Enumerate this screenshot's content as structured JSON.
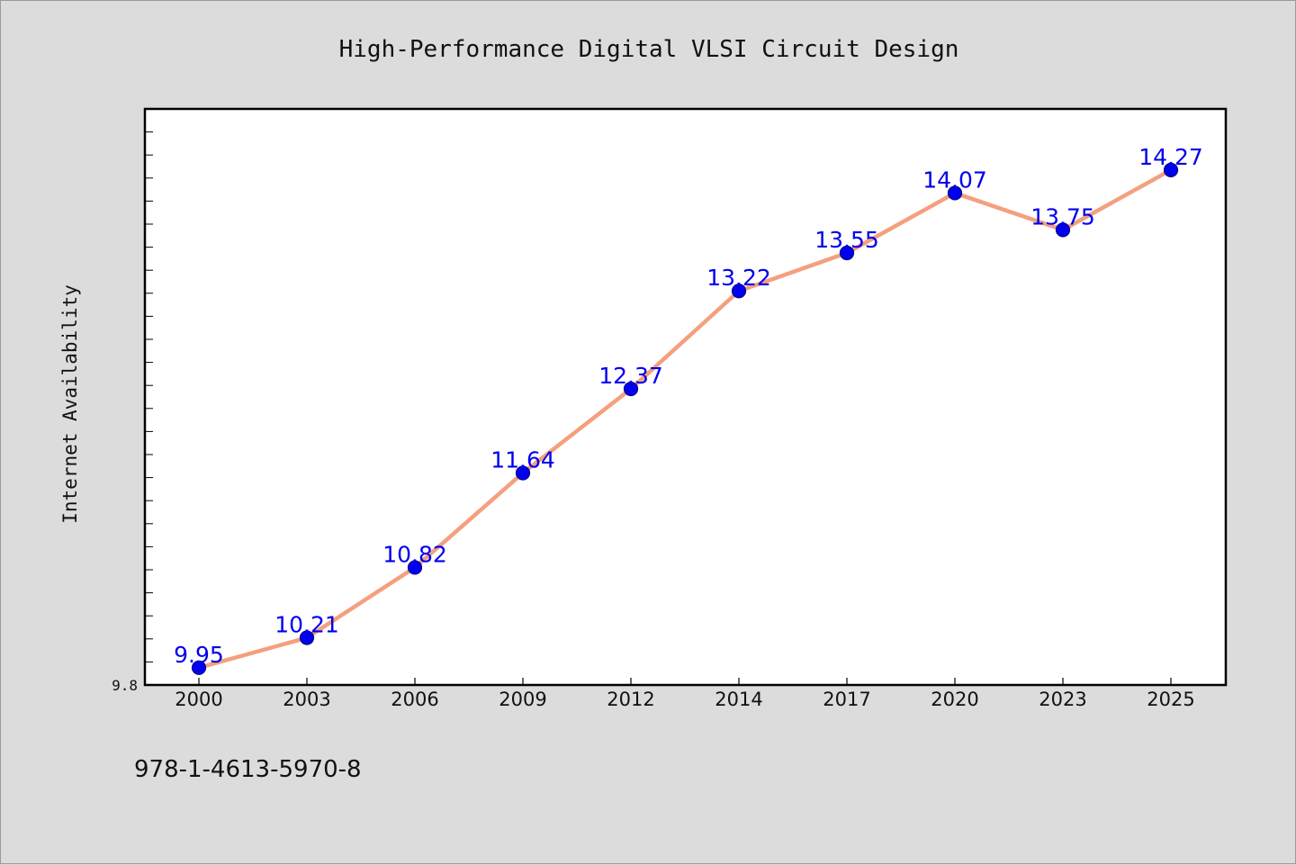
{
  "chart_data": {
    "type": "line",
    "title": "High-Performance Digital VLSI Circuit Design",
    "xlabel": "",
    "ylabel": "Internet Availability",
    "categories": [
      "2000",
      "2003",
      "2006",
      "2009",
      "2012",
      "2014",
      "2017",
      "2020",
      "2023",
      "2025"
    ],
    "series": [
      {
        "values": [
          9.95,
          10.21,
          10.82,
          11.64,
          12.37,
          13.22,
          13.55,
          14.07,
          13.75,
          14.27
        ],
        "line_color": "#f4a07e",
        "marker_color": "#0000ee",
        "label_color": "#0000ee"
      }
    ],
    "ylim": [
      9.8,
      14.8
    ],
    "yticks_labeled": [
      "9.8"
    ],
    "grid": false,
    "legend": "none"
  },
  "footer": {
    "text": "978-1-4613-5970-8"
  }
}
